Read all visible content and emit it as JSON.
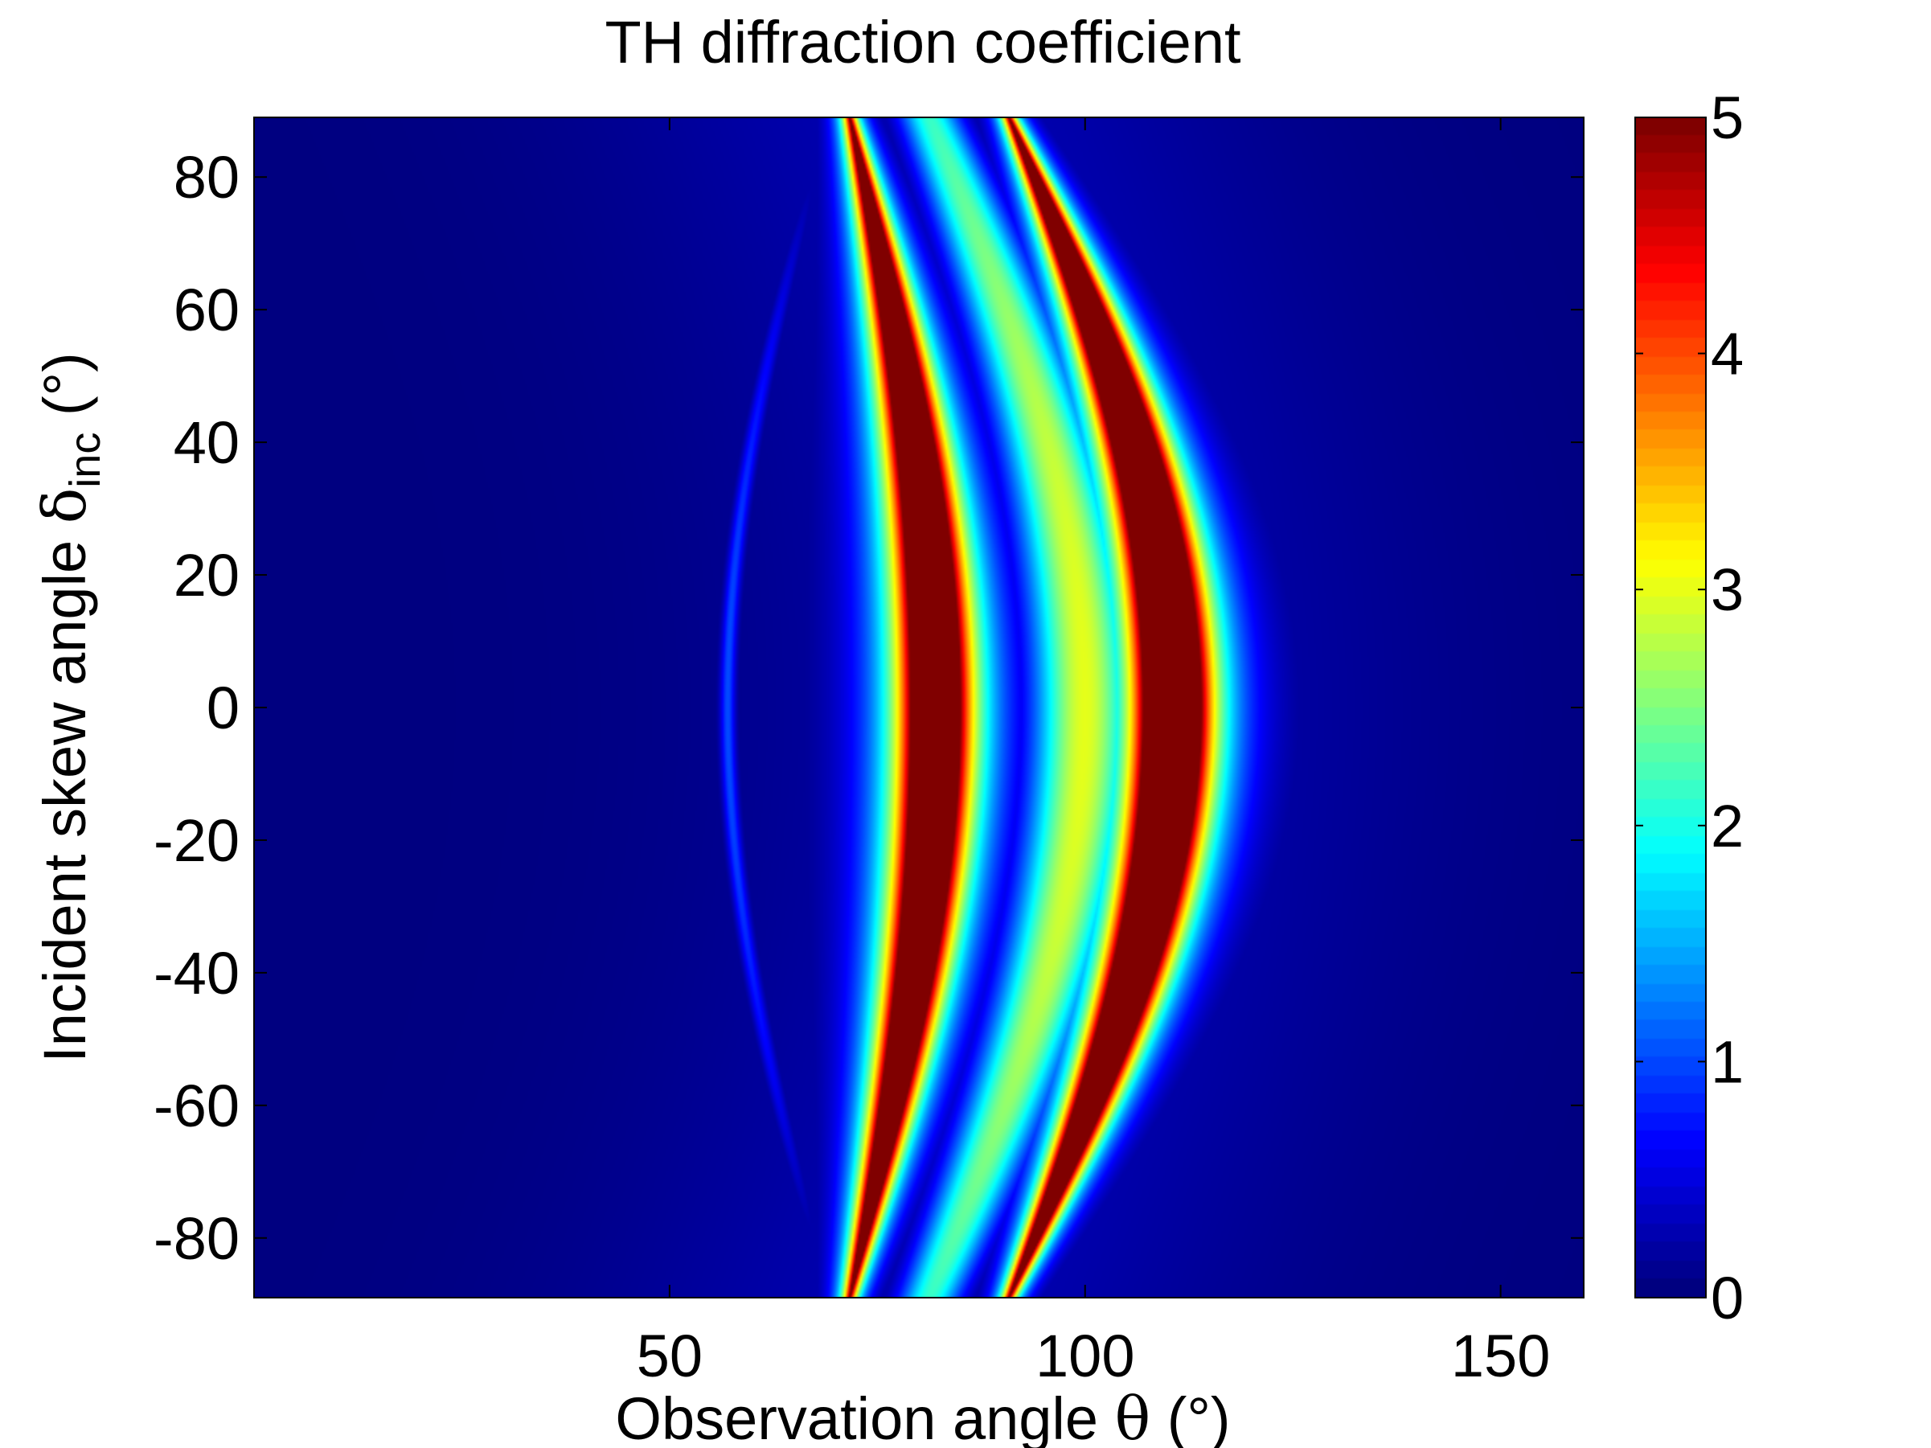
{
  "chart_data": {
    "type": "heatmap",
    "title": "TH diffraction coefficient",
    "xlabel": {
      "text": "Observation angle ",
      "symbol": "θ",
      "unit": " (°)"
    },
    "ylabel": {
      "text": "Incident skew angle ",
      "symbol": "δ",
      "subscript": "inc",
      "unit": " (°)"
    },
    "xlim": [
      0,
      160
    ],
    "ylim": [
      -89,
      89
    ],
    "xticks": [
      50,
      100,
      150
    ],
    "xtick_labels": [
      "50",
      "100",
      "150"
    ],
    "yticks": [
      80,
      60,
      40,
      20,
      0,
      -20,
      -40,
      -60,
      -80
    ],
    "ytick_labels": [
      "80",
      "60",
      "40",
      "20",
      "0",
      "-20",
      "-40",
      "-60",
      "-80"
    ],
    "colorbar": {
      "colormap": "jet",
      "range": [
        0,
        5
      ],
      "ticks": [
        0,
        1,
        2,
        3,
        4,
        5
      ],
      "tick_labels": [
        "0",
        "1",
        "2",
        "3",
        "4",
        "5"
      ]
    },
    "features": [
      {
        "name": "left crescent",
        "theta_at_delta_0": 85,
        "theta_at_delta_pm89": 71.5,
        "inner_theta_at_delta_0": 79,
        "peak_value": 5
      },
      {
        "name": "right crescent",
        "theta_at_delta_0": 114,
        "theta_at_delta_pm89": 90.5,
        "inner_theta_at_delta_0": 107,
        "peak_value": 5
      },
      {
        "name": "yellow band between crescents",
        "theta_at_delta_0": 100,
        "value": 3
      },
      {
        "name": "faint left arc",
        "theta_at_delta_0": 57,
        "value": 1
      }
    ],
    "grid": false
  },
  "colors": {
    "background": "#ffffff",
    "axes": "#000000",
    "jet_low": "#00008f",
    "jet_high": "#800000"
  }
}
